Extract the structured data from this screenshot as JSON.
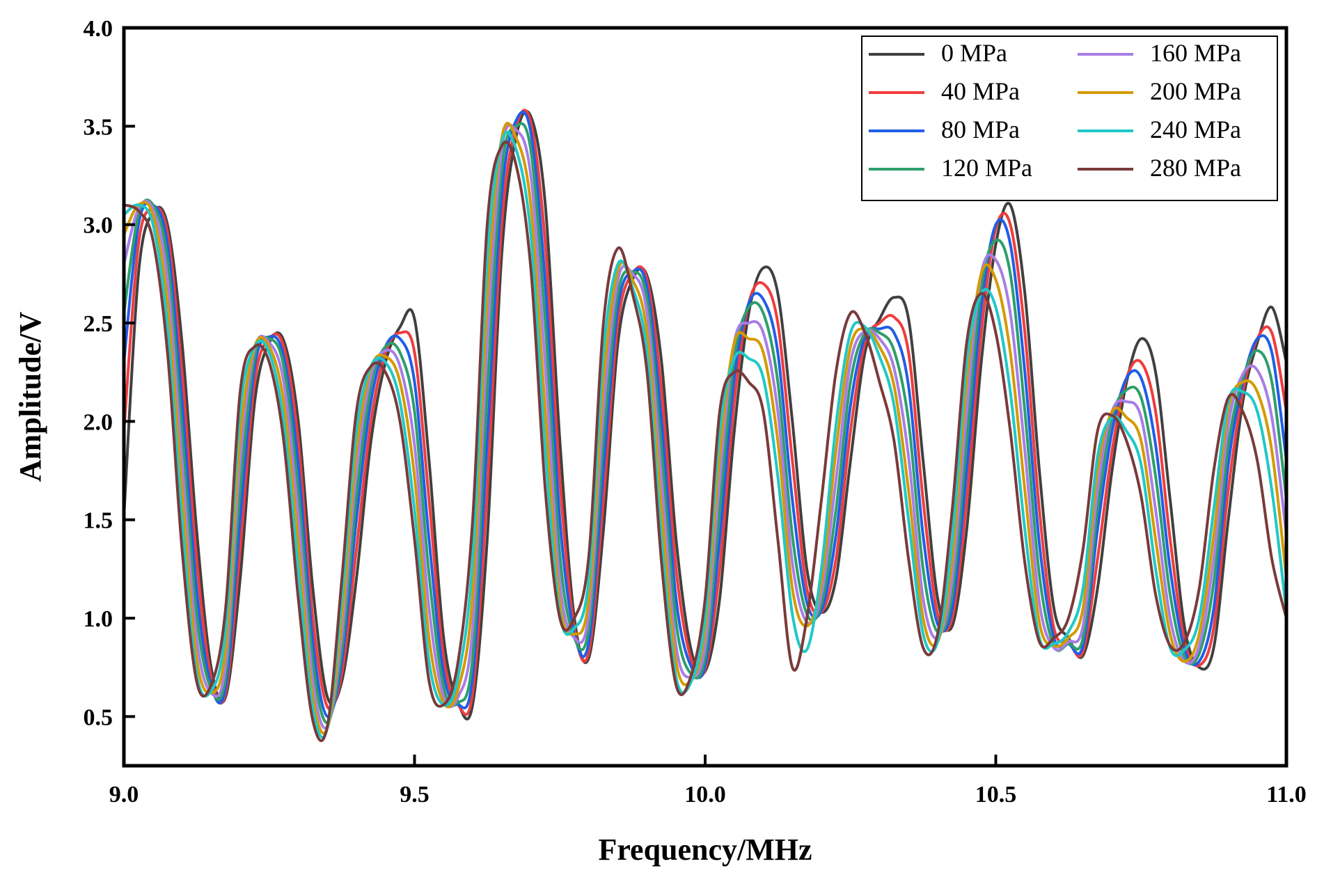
{
  "chart_data": {
    "type": "line",
    "title": "",
    "xlabel": "Frequency/MHz",
    "ylabel": "Amplitude/V",
    "xlim": [
      9.0,
      11.0
    ],
    "ylim": [
      0.25,
      4.0
    ],
    "xticks": [
      "9.0",
      "9.5",
      "10.0",
      "10.5",
      "11.0"
    ],
    "yticks": [
      "0.5",
      "1.0",
      "1.5",
      "2.0",
      "2.5",
      "3.0",
      "3.5",
      "4.0"
    ],
    "grid": false,
    "legend_position": "top-right",
    "x": [
      9.0,
      9.025,
      9.05,
      9.075,
      9.1,
      9.125,
      9.15,
      9.175,
      9.2,
      9.225,
      9.25,
      9.275,
      9.3,
      9.325,
      9.35,
      9.375,
      9.4,
      9.425,
      9.45,
      9.475,
      9.5,
      9.525,
      9.55,
      9.575,
      9.6,
      9.625,
      9.65,
      9.675,
      9.7,
      9.725,
      9.75,
      9.775,
      9.8,
      9.825,
      9.85,
      9.875,
      9.9,
      9.925,
      9.95,
      9.975,
      10.0,
      10.025,
      10.05,
      10.075,
      10.1,
      10.125,
      10.15,
      10.175,
      10.2,
      10.225,
      10.25,
      10.275,
      10.3,
      10.325,
      10.35,
      10.375,
      10.4,
      10.425,
      10.45,
      10.475,
      10.5,
      10.525,
      10.55,
      10.575,
      10.6,
      10.625,
      10.65,
      10.675,
      10.7,
      10.725,
      10.75,
      10.775,
      10.8,
      10.825,
      10.85,
      10.875,
      10.9,
      10.925,
      10.95,
      10.975,
      11.0
    ],
    "series": [
      {
        "name": "0 MPa",
        "color": "#404040",
        "values": [
          1.52,
          2.75,
          3.06,
          3.0,
          2.4,
          1.45,
          0.75,
          0.6,
          1.2,
          2.1,
          2.4,
          2.41,
          2.0,
          1.15,
          0.6,
          0.68,
          1.2,
          1.9,
          2.3,
          2.48,
          2.52,
          1.8,
          0.9,
          0.57,
          0.56,
          1.4,
          2.85,
          3.45,
          3.55,
          3.1,
          1.9,
          1.0,
          0.8,
          1.45,
          2.4,
          2.72,
          2.74,
          2.3,
          1.4,
          0.85,
          0.73,
          1.1,
          1.95,
          2.55,
          2.78,
          2.65,
          2.0,
          1.25,
          1.03,
          1.2,
          1.8,
          2.35,
          2.52,
          2.63,
          2.52,
          1.8,
          1.1,
          0.96,
          1.45,
          2.3,
          2.9,
          3.1,
          2.65,
          1.75,
          1.05,
          0.9,
          0.81,
          1.15,
          1.75,
          2.2,
          2.42,
          2.25,
          1.6,
          0.95,
          0.75,
          0.85,
          1.5,
          2.1,
          2.4,
          2.58,
          2.3
        ]
      },
      {
        "name": "40 MPa",
        "color": "#f03c3c",
        "values": [
          1.95,
          2.9,
          3.08,
          2.96,
          2.25,
          1.3,
          0.7,
          0.62,
          1.35,
          2.2,
          2.42,
          2.38,
          1.9,
          1.0,
          0.55,
          0.72,
          1.35,
          2.0,
          2.35,
          2.45,
          2.35,
          1.6,
          0.8,
          0.56,
          0.62,
          1.65,
          3.0,
          3.5,
          3.52,
          2.9,
          1.7,
          0.95,
          0.83,
          1.6,
          2.5,
          2.75,
          2.72,
          2.15,
          1.25,
          0.8,
          0.74,
          1.25,
          2.1,
          2.6,
          2.7,
          2.5,
          1.8,
          1.15,
          1.03,
          1.3,
          1.95,
          2.4,
          2.5,
          2.53,
          2.35,
          1.6,
          1.02,
          1.0,
          1.6,
          2.45,
          2.98,
          3.0,
          2.45,
          1.55,
          0.95,
          0.88,
          0.83,
          1.3,
          1.85,
          2.22,
          2.3,
          2.05,
          1.4,
          0.88,
          0.76,
          0.95,
          1.65,
          2.15,
          2.42,
          2.45,
          2.05
        ]
      },
      {
        "name": "80 MPa",
        "color": "#1f5ee6",
        "values": [
          2.3,
          3.0,
          3.1,
          2.9,
          2.1,
          1.15,
          0.66,
          0.65,
          1.5,
          2.28,
          2.43,
          2.33,
          1.78,
          0.88,
          0.5,
          0.78,
          1.5,
          2.1,
          2.38,
          2.42,
          2.2,
          1.4,
          0.72,
          0.56,
          0.7,
          1.9,
          3.15,
          3.53,
          3.47,
          2.7,
          1.5,
          0.92,
          0.88,
          1.75,
          2.58,
          2.76,
          2.68,
          2.0,
          1.1,
          0.76,
          0.76,
          1.4,
          2.22,
          2.6,
          2.62,
          2.35,
          1.6,
          1.08,
          1.04,
          1.42,
          2.08,
          2.43,
          2.47,
          2.45,
          2.18,
          1.42,
          0.97,
          1.05,
          1.75,
          2.58,
          3.0,
          2.9,
          2.25,
          1.38,
          0.9,
          0.87,
          0.86,
          1.45,
          1.95,
          2.22,
          2.22,
          1.88,
          1.25,
          0.84,
          0.78,
          1.05,
          1.78,
          2.2,
          2.42,
          2.35,
          1.8
        ]
      },
      {
        "name": "120 MPa",
        "color": "#2e9e6a",
        "values": [
          2.55,
          3.05,
          3.1,
          2.82,
          1.95,
          1.02,
          0.64,
          0.7,
          1.65,
          2.33,
          2.42,
          2.28,
          1.65,
          0.78,
          0.47,
          0.84,
          1.62,
          2.18,
          2.38,
          2.35,
          2.05,
          1.22,
          0.65,
          0.57,
          0.8,
          2.15,
          3.28,
          3.5,
          3.38,
          2.5,
          1.32,
          0.9,
          0.95,
          1.9,
          2.65,
          2.76,
          2.62,
          1.85,
          0.98,
          0.72,
          0.8,
          1.55,
          2.32,
          2.58,
          2.55,
          2.2,
          1.42,
          1.02,
          1.07,
          1.55,
          2.2,
          2.45,
          2.45,
          2.36,
          2.0,
          1.25,
          0.93,
          1.12,
          1.9,
          2.68,
          2.92,
          2.75,
          2.05,
          1.22,
          0.86,
          0.87,
          0.9,
          1.55,
          2.02,
          2.16,
          2.12,
          1.72,
          1.12,
          0.8,
          0.82,
          1.18,
          1.88,
          2.22,
          2.36,
          2.2,
          1.6
        ]
      },
      {
        "name": "160 MPa",
        "color": "#a77ee6",
        "values": [
          2.8,
          3.08,
          3.08,
          2.72,
          1.8,
          0.9,
          0.62,
          0.76,
          1.8,
          2.37,
          2.4,
          2.2,
          1.52,
          0.68,
          0.45,
          0.92,
          1.75,
          2.23,
          2.36,
          2.28,
          1.88,
          1.05,
          0.6,
          0.6,
          0.95,
          2.4,
          3.38,
          3.48,
          3.25,
          2.28,
          1.18,
          0.9,
          1.02,
          2.05,
          2.72,
          2.75,
          2.55,
          1.7,
          0.86,
          0.7,
          0.86,
          1.7,
          2.4,
          2.5,
          2.45,
          2.05,
          1.28,
          0.98,
          1.12,
          1.7,
          2.3,
          2.46,
          2.42,
          2.27,
          1.82,
          1.1,
          0.9,
          1.2,
          2.05,
          2.75,
          2.82,
          2.55,
          1.85,
          1.08,
          0.85,
          0.88,
          0.96,
          1.65,
          2.05,
          2.1,
          2.02,
          1.55,
          1.0,
          0.78,
          0.86,
          1.3,
          1.98,
          2.24,
          2.26,
          2.02,
          1.42
        ]
      },
      {
        "name": "200 MPa",
        "color": "#d49a00",
        "values": [
          2.95,
          3.1,
          3.05,
          2.6,
          1.65,
          0.8,
          0.62,
          0.84,
          1.92,
          2.38,
          2.38,
          2.1,
          1.38,
          0.6,
          0.44,
          1.0,
          1.85,
          2.27,
          2.33,
          2.2,
          1.72,
          0.9,
          0.57,
          0.64,
          1.12,
          2.62,
          3.44,
          3.44,
          3.1,
          2.05,
          1.08,
          0.92,
          1.1,
          2.2,
          2.77,
          2.72,
          2.45,
          1.55,
          0.78,
          0.68,
          0.94,
          1.83,
          2.4,
          2.42,
          2.35,
          1.9,
          1.15,
          0.96,
          1.18,
          1.85,
          2.38,
          2.47,
          2.38,
          2.18,
          1.65,
          1.0,
          0.88,
          1.3,
          2.2,
          2.75,
          2.72,
          2.35,
          1.65,
          0.98,
          0.86,
          0.9,
          1.05,
          1.75,
          2.05,
          2.02,
          1.9,
          1.4,
          0.92,
          0.78,
          0.92,
          1.42,
          2.06,
          2.2,
          2.15,
          1.85,
          1.2
        ]
      },
      {
        "name": "240 MPa",
        "color": "#20c8c8",
        "values": [
          3.05,
          3.1,
          3.0,
          2.48,
          1.5,
          0.72,
          0.63,
          0.94,
          2.05,
          2.38,
          2.35,
          2.0,
          1.25,
          0.54,
          0.44,
          1.1,
          1.95,
          2.28,
          2.3,
          2.1,
          1.55,
          0.78,
          0.56,
          0.7,
          1.3,
          2.82,
          3.42,
          3.38,
          2.95,
          1.85,
          1.02,
          0.95,
          1.2,
          2.35,
          2.8,
          2.68,
          2.35,
          1.4,
          0.7,
          0.67,
          1.0,
          1.95,
          2.32,
          2.32,
          2.22,
          1.72,
          1.02,
          0.84,
          1.25,
          1.98,
          2.45,
          2.48,
          2.33,
          2.08,
          1.5,
          0.92,
          0.88,
          1.4,
          2.3,
          2.65,
          2.58,
          2.15,
          1.45,
          0.9,
          0.87,
          0.93,
          1.15,
          1.82,
          2.02,
          1.95,
          1.78,
          1.25,
          0.85,
          0.84,
          1.0,
          1.55,
          2.1,
          2.15,
          2.05,
          1.65,
          1.03
        ]
      },
      {
        "name": "280 MPa",
        "color": "#7a3a3a",
        "values": [
          3.1,
          3.07,
          2.92,
          2.35,
          1.35,
          0.68,
          0.66,
          1.05,
          2.15,
          2.38,
          2.3,
          1.9,
          1.1,
          0.48,
          0.45,
          1.2,
          2.05,
          2.28,
          2.25,
          2.0,
          1.4,
          0.68,
          0.56,
          0.78,
          1.5,
          3.0,
          3.4,
          3.3,
          2.78,
          1.65,
          1.0,
          1.0,
          1.32,
          2.5,
          2.88,
          2.65,
          2.25,
          1.28,
          0.66,
          0.7,
          1.1,
          2.05,
          2.25,
          2.2,
          2.05,
          1.4,
          0.75,
          1.0,
          1.6,
          2.25,
          2.55,
          2.45,
          2.2,
          1.9,
          1.3,
          0.85,
          0.92,
          1.55,
          2.4,
          2.65,
          2.45,
          1.95,
          1.28,
          0.88,
          0.9,
          1.0,
          1.35,
          1.95,
          2.03,
          1.9,
          1.62,
          1.12,
          0.86,
          0.88,
          1.15,
          1.75,
          2.12,
          2.05,
          1.8,
          1.3,
          1.0
        ]
      }
    ]
  }
}
